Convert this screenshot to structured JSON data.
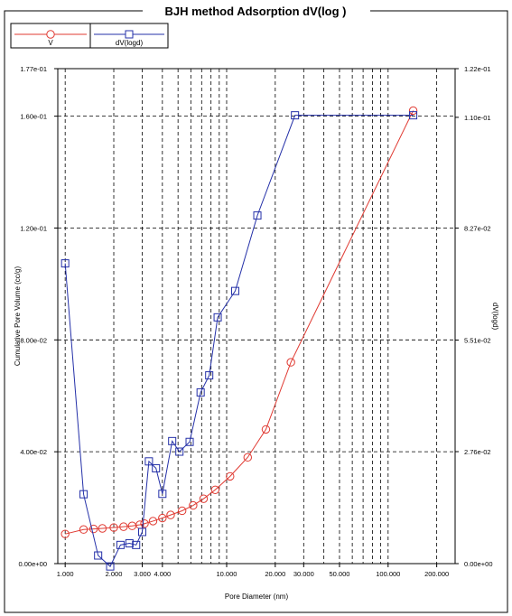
{
  "chart_data": {
    "type": "line",
    "title": "BJH method Adsorption  dV(log )",
    "xlabel": "Pore Diameter (nm)",
    "ylabel_left": "Cumulative Pore Volume (cc/g)",
    "ylabel_right": "dV(logd)",
    "x_scale": "log",
    "xlim": [
      0.9,
      260
    ],
    "x_ticks": [
      1,
      2,
      3,
      4,
      10,
      20,
      30,
      50,
      100,
      200
    ],
    "x_tick_labels": [
      "1.000",
      "2.000",
      "3.000",
      "4.000",
      "10.000",
      "20.000",
      "30.000",
      "50.000",
      "100.000",
      "200.000"
    ],
    "x_minor_gridlines": [
      5,
      6,
      7,
      8,
      9,
      40,
      60,
      70,
      80,
      90
    ],
    "ylim_left": [
      0,
      0.177
    ],
    "ylim_right": [
      0,
      0.122
    ],
    "y_left_ticks": [
      0,
      0.04,
      0.08,
      0.12,
      0.16,
      0.177
    ],
    "y_left_tick_labels": [
      "0.00e+00",
      "4.00e-02",
      "8.00e-02",
      "1.20e-01",
      "1.60e-01",
      "1.77e-01"
    ],
    "y_right_ticks": [
      0,
      0.0276,
      0.0551,
      0.0827,
      0.11,
      0.122
    ],
    "y_right_tick_labels": [
      "0.00e+00",
      "2.76e-02",
      "5.51e-02",
      "8.27e-02",
      "1.10e-01",
      "1.22e-01"
    ],
    "grid": true,
    "legend_position": "top-left",
    "series": [
      {
        "name": "V",
        "axis": "left",
        "color": "#e03a32",
        "marker": "circle",
        "x": [
          1.0,
          1.3,
          1.5,
          1.7,
          2.0,
          2.3,
          2.6,
          2.9,
          3.1,
          3.5,
          4.0,
          4.5,
          5.3,
          6.2,
          7.2,
          8.5,
          10.5,
          13.5,
          17.5,
          25.0,
          143.0
        ],
        "y": [
          0.0106,
          0.0122,
          0.0124,
          0.0126,
          0.0129,
          0.0132,
          0.0135,
          0.0139,
          0.0143,
          0.0152,
          0.0163,
          0.0174,
          0.0189,
          0.0208,
          0.0232,
          0.0264,
          0.0312,
          0.038,
          0.048,
          0.072,
          0.162
        ]
      },
      {
        "name": "dV(logd)",
        "axis": "right",
        "color": "#2430a8",
        "marker": "square",
        "x": [
          1.0,
          1.3,
          1.6,
          1.9,
          2.2,
          2.5,
          2.75,
          3.0,
          3.3,
          3.65,
          4.0,
          4.6,
          5.1,
          5.9,
          6.9,
          7.8,
          8.8,
          11.3,
          15.5,
          26.5,
          143.0
        ],
        "y": [
          0.074,
          0.0171,
          0.002,
          -0.0007,
          0.0046,
          0.005,
          0.0046,
          0.0078,
          0.0252,
          0.0235,
          0.0172,
          0.0302,
          0.0276,
          0.03,
          0.0422,
          0.0464,
          0.0607,
          0.0672,
          0.0858,
          0.1105,
          0.1105
        ]
      }
    ]
  }
}
